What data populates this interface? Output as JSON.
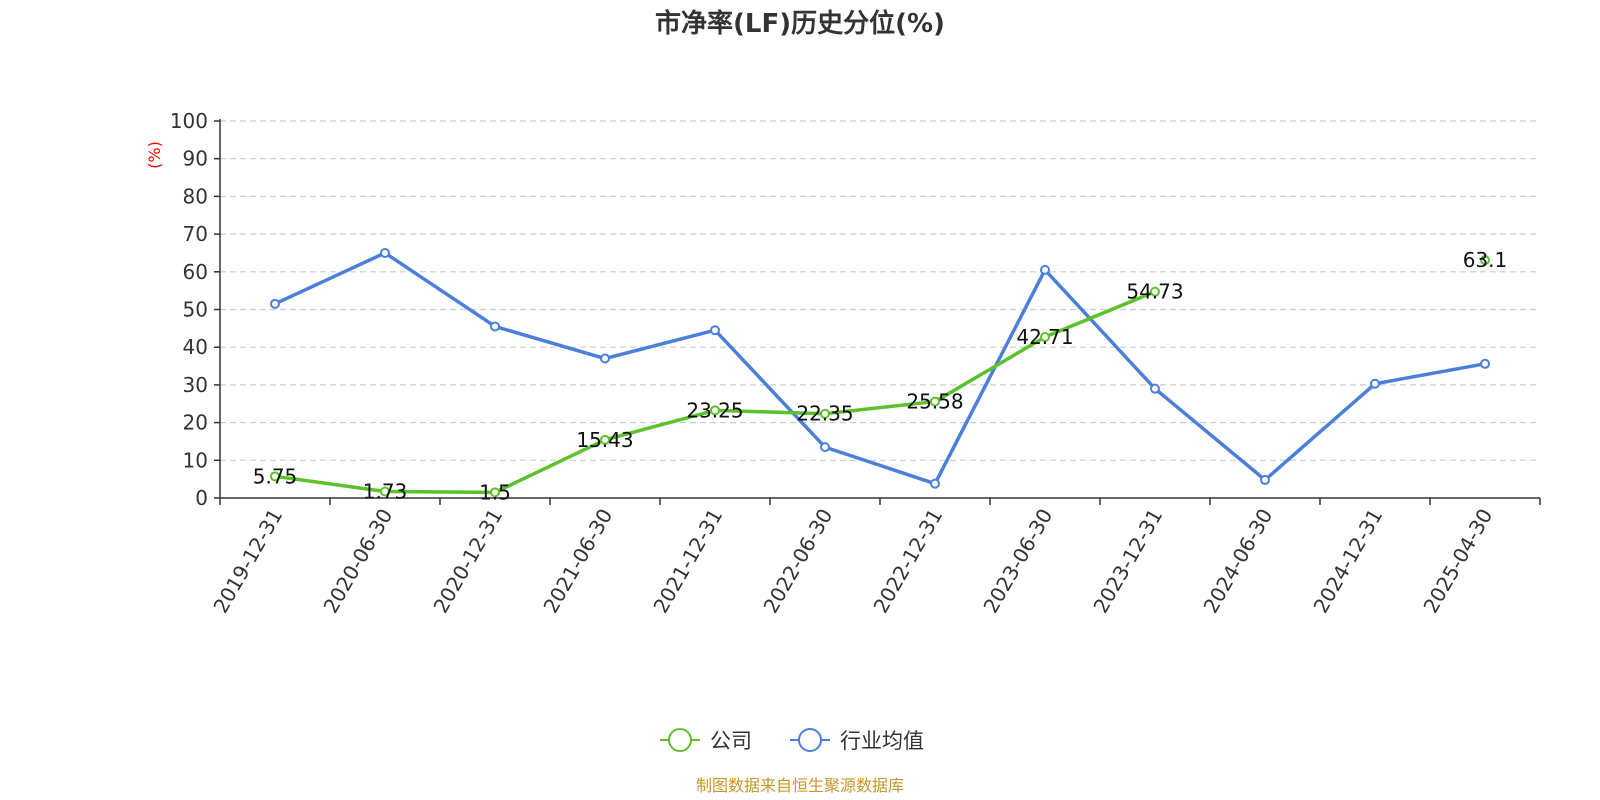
{
  "chart_data": {
    "type": "line",
    "title": "市净率(LF)历史分位(%)",
    "ylabel": "(%)",
    "ylim": [
      0,
      100
    ],
    "yticks": [
      0,
      10,
      20,
      30,
      40,
      50,
      60,
      70,
      80,
      90,
      100
    ],
    "grid": true,
    "legend_position": "bottom",
    "categories": [
      "2019-12-31",
      "2020-06-30",
      "2020-12-31",
      "2021-06-30",
      "2021-12-31",
      "2022-06-30",
      "2022-12-31",
      "2023-06-30",
      "2023-12-31",
      "2024-06-30",
      "2024-12-31",
      "2025-04-30"
    ],
    "series": [
      {
        "name": "公司",
        "color": "#5cc22b",
        "values": [
          5.75,
          1.73,
          1.5,
          15.43,
          23.25,
          22.35,
          25.58,
          42.71,
          54.73,
          null,
          null,
          63.1
        ],
        "labels": [
          "5.75",
          "1.73",
          "1.5",
          "15.43",
          "23.25",
          "22.35",
          "25.58",
          "42.71",
          "54.73",
          "",
          "",
          "63.1"
        ]
      },
      {
        "name": "行业均值",
        "color": "#4b7fdb",
        "values": [
          51.5,
          65.0,
          45.5,
          37.0,
          44.5,
          13.5,
          3.8,
          60.5,
          29.0,
          4.8,
          30.3,
          35.6
        ]
      }
    ]
  },
  "footer": {
    "source": "制图数据来自恒生聚源数据库",
    "source_color": "#c8962a"
  },
  "ylabel_color": "#ff0000"
}
